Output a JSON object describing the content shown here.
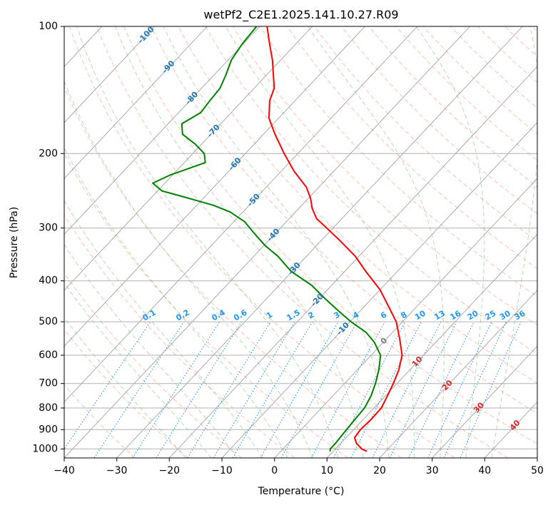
{
  "chart_data": {
    "type": "line",
    "title": "wetPf2_C2E1.2025.141.10.27.R09",
    "xlabel": "Temperature (°C)",
    "ylabel": "Pressure (hPa)",
    "xlim": [
      -40,
      50
    ],
    "ylim": [
      1050,
      100
    ],
    "y_scale": "log",
    "grid": true,
    "x_ticks": [
      -40,
      -30,
      -20,
      -10,
      0,
      10,
      20,
      30,
      40,
      50
    ],
    "x_tick_labels": [
      "−40",
      "−30",
      "−20",
      "−10",
      "0",
      "10",
      "20",
      "30",
      "40",
      "50"
    ],
    "y_ticks": [
      1000,
      900,
      800,
      700,
      600,
      500,
      400,
      300,
      200,
      100
    ],
    "y_tick_labels": [
      "1000",
      "900",
      "800",
      "700",
      "600",
      "500",
      "400",
      "300",
      "200",
      "100"
    ],
    "series": [
      {
        "role": "temperature",
        "color": "#ff0000",
        "pressure": [
          1013,
          1000,
          970,
          940,
          900,
          850,
          800,
          750,
          700,
          650,
          600,
          550,
          500,
          460,
          420,
          380,
          350,
          320,
          300,
          285,
          270,
          255,
          240,
          220,
          200,
          180,
          165,
          150,
          140,
          130,
          120,
          110,
          100
        ],
        "temperature": [
          16.4,
          15.0,
          13.0,
          11.6,
          11.3,
          11.5,
          11.4,
          10.4,
          9.3,
          7.9,
          5.9,
          2.6,
          -1.2,
          -5.4,
          -10.0,
          -16.0,
          -20.7,
          -26.7,
          -31.2,
          -34.8,
          -37.4,
          -39.6,
          -42.4,
          -47.6,
          -52.6,
          -57.8,
          -61.8,
          -64.8,
          -66.2,
          -68.8,
          -71.6,
          -75.0,
          -78.6
        ]
      },
      {
        "role": "dewpoint",
        "color": "#008000",
        "pressure": [
          1013,
          1000,
          970,
          930,
          890,
          850,
          800,
          750,
          700,
          650,
          600,
          560,
          530,
          500,
          470,
          440,
          410,
          380,
          350,
          330,
          310,
          290,
          275,
          265,
          255,
          245,
          235,
          225,
          210,
          200,
          190,
          180,
          170,
          160,
          150,
          140,
          130,
          120,
          110,
          100
        ],
        "temperature": [
          9.4,
          9.0,
          9.0,
          8.8,
          8.6,
          8.4,
          8.2,
          7.3,
          5.9,
          4.1,
          1.8,
          -1.6,
          -5.0,
          -9.8,
          -14.3,
          -19.0,
          -23.8,
          -30.2,
          -35.4,
          -39.8,
          -43.8,
          -47.9,
          -52.4,
          -56.8,
          -62.8,
          -69.2,
          -72.3,
          -70.5,
          -66.0,
          -67.8,
          -71.2,
          -75.4,
          -77.4,
          -75.8,
          -76.2,
          -76.5,
          -77.8,
          -79.4,
          -80.2,
          -80.6
        ]
      }
    ],
    "reference_lines": {
      "isotherms": "solid grey, every 10 °C, skewed",
      "dry_adiabats": "dashed red-orange",
      "moist_adiabats": "dashed green",
      "mixing_ratio": "dotted blue"
    },
    "isotherm_labels": [
      "-100",
      "-90",
      "-80",
      "-70",
      "-60",
      "-50",
      "-40",
      "-30",
      "-20",
      "-10",
      "0",
      "10",
      "20",
      "30",
      "40"
    ],
    "isotherm_label_colors": {
      "cold": "#1f77b4",
      "zero": "#7f7f7f",
      "warm": "#d62728"
    },
    "mixing_ratio_labels": [
      "0.1",
      "0.2",
      "0.4",
      "0.6",
      "1",
      "1.5",
      "2",
      "3",
      "4",
      "6",
      "8",
      "10",
      "13",
      "16",
      "20",
      "25",
      "30",
      "36"
    ],
    "mixing_ratio_values": [
      0.1,
      0.2,
      0.4,
      0.6,
      1,
      1.5,
      2,
      3,
      4,
      6,
      8,
      10,
      13,
      16,
      20,
      25,
      30,
      36
    ],
    "mixing_ratio_label_color": "#2196f3"
  }
}
